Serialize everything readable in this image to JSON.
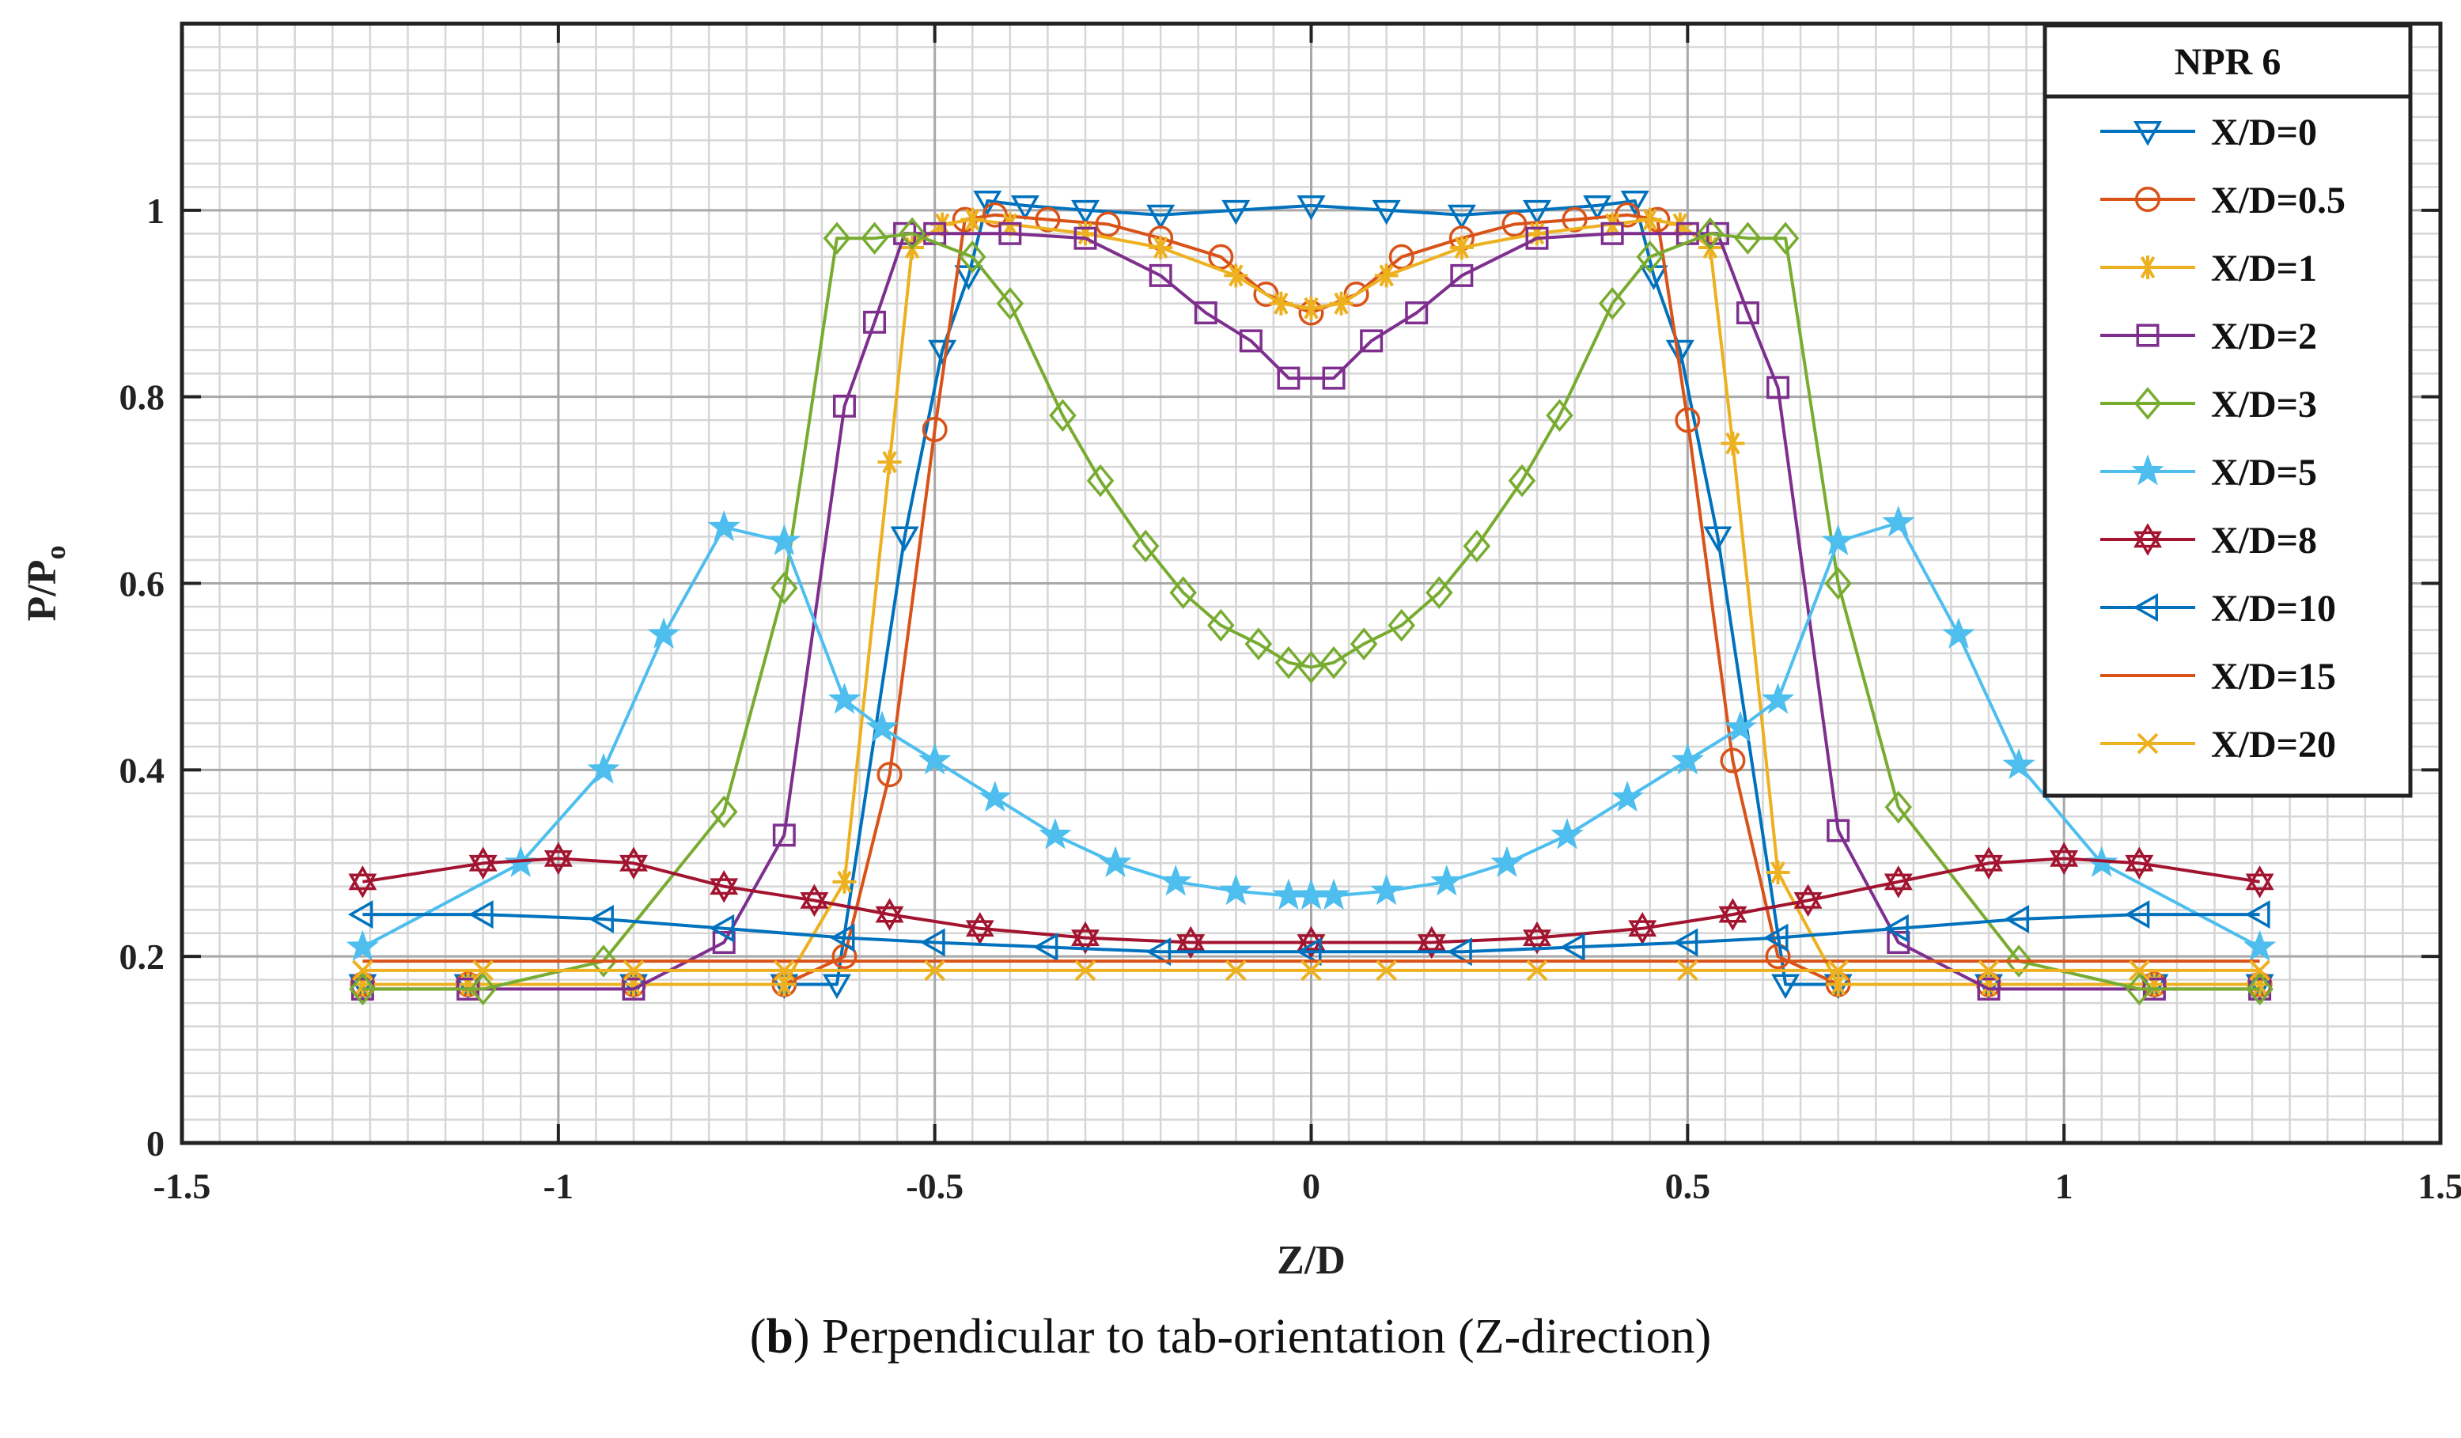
{
  "chart_data": {
    "type": "line",
    "title": "",
    "xlabel": "Z/D",
    "ylabel_main": "P/P",
    "ylabel_sub": "o",
    "xlim": [
      -1.5,
      1.5
    ],
    "ylim": [
      0,
      1.2
    ],
    "xticks": [
      -1.5,
      -1,
      -0.5,
      0,
      0.5,
      1,
      1.5
    ],
    "xtick_labels": [
      "-1.5",
      "-1",
      "-0.5",
      "0",
      "0.5",
      "1",
      "1.5"
    ],
    "yticks": [
      0,
      0.2,
      0.4,
      0.6,
      0.8,
      1
    ],
    "ytick_labels": [
      "0",
      "0.2",
      "0.4",
      "0.6",
      "0.8",
      "1"
    ],
    "grid": "major and minor",
    "legend_title": "NPR 6",
    "legend_position": "top-right",
    "series": [
      {
        "name": "X/D=0",
        "color": "#0072BD",
        "marker": "triangle-down",
        "x": [
          -1.26,
          -1.12,
          -0.9,
          -0.7,
          -0.63,
          -0.54,
          -0.49,
          -0.455,
          -0.43,
          -0.38,
          -0.3,
          -0.2,
          -0.1,
          0,
          0.1,
          0.2,
          0.3,
          0.38,
          0.43,
          0.455,
          0.49,
          0.54,
          0.63,
          0.7,
          0.9,
          1.12,
          1.26
        ],
        "y": [
          0.17,
          0.17,
          0.17,
          0.17,
          0.17,
          0.65,
          0.85,
          0.93,
          1.01,
          1.005,
          1.0,
          0.995,
          1.0,
          1.005,
          1.0,
          0.995,
          1.0,
          1.005,
          1.01,
          0.93,
          0.85,
          0.65,
          0.17,
          0.17,
          0.17,
          0.17,
          0.17
        ]
      },
      {
        "name": "X/D=0.5",
        "color": "#D95319",
        "marker": "circle",
        "x": [
          -1.26,
          -1.12,
          -0.9,
          -0.7,
          -0.62,
          -0.56,
          -0.5,
          -0.46,
          -0.42,
          -0.35,
          -0.27,
          -0.2,
          -0.12,
          -0.06,
          0,
          0.06,
          0.12,
          0.2,
          0.27,
          0.35,
          0.42,
          0.46,
          0.5,
          0.56,
          0.62,
          0.7,
          0.9,
          1.12,
          1.26
        ],
        "y": [
          0.17,
          0.17,
          0.17,
          0.17,
          0.2,
          0.395,
          0.765,
          0.99,
          0.995,
          0.99,
          0.985,
          0.97,
          0.95,
          0.91,
          0.89,
          0.91,
          0.95,
          0.97,
          0.985,
          0.99,
          0.995,
          0.99,
          0.775,
          0.41,
          0.2,
          0.17,
          0.17,
          0.17,
          0.17
        ]
      },
      {
        "name": "X/D=1",
        "color": "#EDB120",
        "marker": "asterisk",
        "x": [
          -1.26,
          -1.12,
          -0.9,
          -0.7,
          -0.62,
          -0.56,
          -0.53,
          -0.49,
          -0.45,
          -0.4,
          -0.3,
          -0.2,
          -0.1,
          -0.04,
          0,
          0.04,
          0.1,
          0.2,
          0.3,
          0.4,
          0.45,
          0.49,
          0.53,
          0.56,
          0.62,
          0.7,
          0.9,
          1.12,
          1.26
        ],
        "y": [
          0.17,
          0.17,
          0.17,
          0.17,
          0.28,
          0.73,
          0.96,
          0.985,
          0.99,
          0.985,
          0.975,
          0.96,
          0.93,
          0.9,
          0.895,
          0.9,
          0.93,
          0.96,
          0.975,
          0.985,
          0.99,
          0.985,
          0.96,
          0.75,
          0.29,
          0.17,
          0.17,
          0.17,
          0.17
        ]
      },
      {
        "name": "X/D=2",
        "color": "#7E2F8E",
        "marker": "square",
        "x": [
          -1.26,
          -1.12,
          -0.9,
          -0.78,
          -0.7,
          -0.62,
          -0.58,
          -0.54,
          -0.5,
          -0.4,
          -0.3,
          -0.2,
          -0.14,
          -0.08,
          -0.03,
          0.03,
          0.08,
          0.14,
          0.2,
          0.3,
          0.4,
          0.5,
          0.54,
          0.58,
          0.62,
          0.7,
          0.78,
          0.9,
          1.12,
          1.26
        ],
        "y": [
          0.165,
          0.165,
          0.165,
          0.215,
          0.33,
          0.79,
          0.88,
          0.975,
          0.975,
          0.975,
          0.97,
          0.93,
          0.89,
          0.86,
          0.82,
          0.82,
          0.86,
          0.89,
          0.93,
          0.97,
          0.975,
          0.975,
          0.975,
          0.89,
          0.81,
          0.335,
          0.215,
          0.165,
          0.165,
          0.165
        ]
      },
      {
        "name": "X/D=3",
        "color": "#77AC30",
        "marker": "diamond",
        "x": [
          -1.26,
          -1.1,
          -0.94,
          -0.78,
          -0.7,
          -0.63,
          -0.58,
          -0.53,
          -0.45,
          -0.4,
          -0.33,
          -0.28,
          -0.22,
          -0.17,
          -0.12,
          -0.07,
          -0.03,
          0,
          0.03,
          0.07,
          0.12,
          0.17,
          0.22,
          0.28,
          0.33,
          0.4,
          0.45,
          0.53,
          0.58,
          0.63,
          0.7,
          0.78,
          0.94,
          1.1,
          1.26
        ],
        "y": [
          0.165,
          0.165,
          0.195,
          0.355,
          0.595,
          0.97,
          0.97,
          0.975,
          0.95,
          0.9,
          0.78,
          0.71,
          0.64,
          0.59,
          0.555,
          0.535,
          0.515,
          0.51,
          0.515,
          0.535,
          0.555,
          0.59,
          0.64,
          0.71,
          0.78,
          0.9,
          0.95,
          0.975,
          0.97,
          0.97,
          0.6,
          0.36,
          0.195,
          0.165,
          0.165
        ]
      },
      {
        "name": "X/D=5",
        "color": "#4DBEEE",
        "marker": "star",
        "x": [
          -1.26,
          -1.05,
          -0.94,
          -0.86,
          -0.78,
          -0.7,
          -0.62,
          -0.57,
          -0.5,
          -0.42,
          -0.34,
          -0.26,
          -0.18,
          -0.1,
          -0.03,
          0,
          0.03,
          0.1,
          0.18,
          0.26,
          0.34,
          0.42,
          0.5,
          0.57,
          0.62,
          0.7,
          0.78,
          0.86,
          0.94,
          1.05,
          1.26
        ],
        "y": [
          0.21,
          0.3,
          0.4,
          0.545,
          0.66,
          0.645,
          0.475,
          0.445,
          0.41,
          0.37,
          0.33,
          0.3,
          0.28,
          0.27,
          0.265,
          0.265,
          0.265,
          0.27,
          0.28,
          0.3,
          0.33,
          0.37,
          0.41,
          0.445,
          0.475,
          0.645,
          0.665,
          0.545,
          0.405,
          0.3,
          0.21
        ]
      },
      {
        "name": "X/D=8",
        "color": "#A2142F",
        "marker": "hexagram",
        "x": [
          -1.26,
          -1.1,
          -1.0,
          -0.9,
          -0.78,
          -0.66,
          -0.56,
          -0.44,
          -0.3,
          -0.16,
          0,
          0.16,
          0.3,
          0.44,
          0.56,
          0.66,
          0.78,
          0.9,
          1.0,
          1.1,
          1.26
        ],
        "y": [
          0.28,
          0.3,
          0.305,
          0.3,
          0.275,
          0.26,
          0.245,
          0.23,
          0.22,
          0.215,
          0.215,
          0.215,
          0.22,
          0.23,
          0.245,
          0.26,
          0.28,
          0.3,
          0.305,
          0.3,
          0.28
        ]
      },
      {
        "name": "X/D=10",
        "color": "#0072BD",
        "marker": "triangle-left",
        "x": [
          -1.26,
          -1.1,
          -0.94,
          -0.78,
          -0.62,
          -0.5,
          -0.35,
          -0.2,
          0,
          0.2,
          0.35,
          0.5,
          0.62,
          0.78,
          0.94,
          1.1,
          1.26
        ],
        "y": [
          0.245,
          0.245,
          0.24,
          0.23,
          0.22,
          0.215,
          0.21,
          0.205,
          0.205,
          0.205,
          0.21,
          0.215,
          0.22,
          0.23,
          0.24,
          0.245,
          0.245
        ]
      },
      {
        "name": "X/D=15",
        "color": "#D95319",
        "marker": "none",
        "x": [
          -1.26,
          1.26
        ],
        "y": [
          0.195,
          0.195
        ]
      },
      {
        "name": "X/D=20",
        "color": "#EDB120",
        "marker": "x",
        "x": [
          -1.26,
          -1.1,
          -0.9,
          -0.7,
          -0.5,
          -0.3,
          -0.1,
          0,
          0.1,
          0.3,
          0.5,
          0.7,
          0.9,
          1.1,
          1.26
        ],
        "y": [
          0.185,
          0.185,
          0.185,
          0.185,
          0.185,
          0.185,
          0.185,
          0.185,
          0.185,
          0.185,
          0.185,
          0.185,
          0.185,
          0.185,
          0.185
        ]
      }
    ]
  },
  "caption": {
    "label": "b",
    "open": "(",
    "close": ")",
    "text": " Perpendicular to tab-orientation (Z-direction)"
  }
}
